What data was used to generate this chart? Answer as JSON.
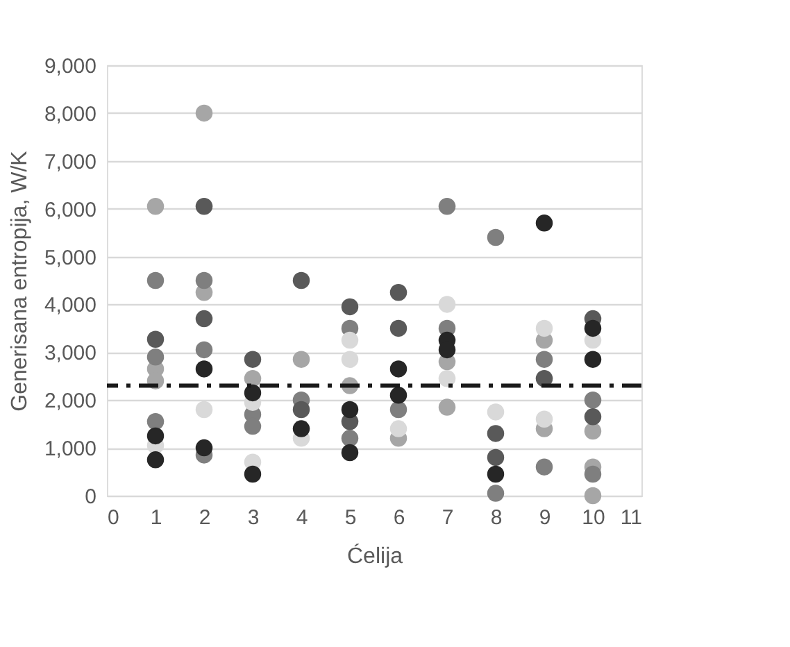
{
  "chart_data": {
    "type": "scatter",
    "xlabel": "Ćelija",
    "ylabel": "Generisana entropija, W/K",
    "xlim": [
      0,
      11
    ],
    "xticks": [
      0,
      1,
      2,
      3,
      4,
      5,
      6,
      7,
      8,
      9,
      10,
      11
    ],
    "ylim": [
      0,
      9000
    ],
    "yticks": [
      {
        "value": 0,
        "label": "0"
      },
      {
        "value": 1000,
        "label": "1,000"
      },
      {
        "value": 2000,
        "label": "2,000"
      },
      {
        "value": 3000,
        "label": "3,000"
      },
      {
        "value": 4000,
        "label": "4,000"
      },
      {
        "value": 5000,
        "label": "5,000"
      },
      {
        "value": 6000,
        "label": "6,000"
      },
      {
        "value": 7000,
        "label": "7,000"
      },
      {
        "value": 8000,
        "label": "8,000"
      },
      {
        "value": 9000,
        "label": "9,000"
      }
    ],
    "grid": "y",
    "marker": "circle",
    "series": [
      {
        "color": "#a6a6a6",
        "x": [
          1,
          1,
          1,
          2,
          2,
          3,
          4,
          5,
          6,
          7,
          7,
          9,
          9,
          10,
          10,
          10
        ],
        "values": [
          6050,
          2650,
          2400,
          8000,
          4250,
          2450,
          2850,
          2300,
          1200,
          2800,
          1850,
          3250,
          1400,
          1350,
          600,
          0
        ]
      },
      {
        "color": "#7f7f7f",
        "x": [
          1,
          1,
          1,
          2,
          2,
          2,
          3,
          3,
          4,
          5,
          5,
          6,
          7,
          7,
          8,
          8,
          9,
          9,
          10,
          10
        ],
        "values": [
          4500,
          2900,
          1550,
          4500,
          3050,
          850,
          1700,
          1450,
          2000,
          3500,
          1200,
          1800,
          6050,
          3500,
          5400,
          50,
          2850,
          600,
          2000,
          450
        ]
      },
      {
        "color": "#595959",
        "x": [
          1,
          2,
          2,
          3,
          4,
          4,
          5,
          5,
          6,
          6,
          8,
          8,
          9,
          10,
          10
        ],
        "values": [
          3270,
          6050,
          3700,
          2850,
          4500,
          1800,
          3950,
          1550,
          4250,
          3500,
          1300,
          800,
          2450,
          3700,
          1650
        ]
      },
      {
        "color": "#d9d9d9",
        "x": [
          1,
          2,
          3,
          3,
          4,
          5,
          5,
          6,
          7,
          7,
          8,
          9,
          9,
          10
        ],
        "values": [
          1050,
          1800,
          1950,
          700,
          1200,
          3250,
          2850,
          1400,
          4000,
          2450,
          1750,
          3500,
          1600,
          3250
        ]
      },
      {
        "color": "#262626",
        "x": [
          1,
          1,
          2,
          2,
          3,
          3,
          4,
          5,
          5,
          6,
          6,
          7,
          7,
          8,
          9,
          10,
          10
        ],
        "values": [
          1250,
          750,
          2650,
          1000,
          2150,
          450,
          1400,
          1800,
          900,
          2650,
          2100,
          3250,
          3050,
          450,
          5700,
          3500,
          2850
        ]
      }
    ],
    "ref_lines": [
      {
        "axis": "y",
        "value": 2300,
        "color": "#1a1a1a",
        "line_style": "dashdot"
      }
    ]
  }
}
